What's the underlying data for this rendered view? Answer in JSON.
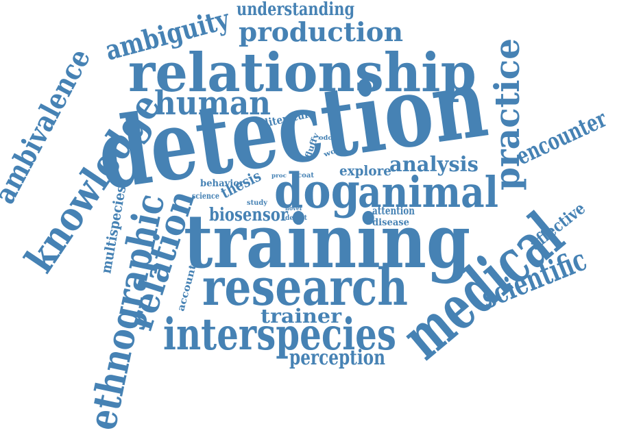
{
  "word_color": "#4682b4",
  "background": "#ffffff",
  "words": [
    {
      "key": "understanding",
      "text": "understanding"
    },
    {
      "key": "production",
      "text": "production"
    },
    {
      "key": "ambiguity",
      "text": "ambiguity"
    },
    {
      "key": "relationship",
      "text": "relationship"
    },
    {
      "key": "practice",
      "text": "practice"
    },
    {
      "key": "human",
      "text": "human"
    },
    {
      "key": "ambivalence",
      "text": "ambivalence"
    },
    {
      "key": "knowledge",
      "text": "knowledge"
    },
    {
      "key": "literature",
      "text": "literature"
    },
    {
      "key": "encounter",
      "text": "encounter"
    },
    {
      "key": "detection",
      "text": "detection"
    },
    {
      "key": "fluffy",
      "text": "fluffy"
    },
    {
      "key": "odor",
      "text": "odor"
    },
    {
      "key": "work",
      "text": "work"
    },
    {
      "key": "explore",
      "text": "explore"
    },
    {
      "key": "analysis",
      "text": "analysis"
    },
    {
      "key": "coat",
      "text": "coat"
    },
    {
      "key": "proc",
      "text": "proc"
    },
    {
      "key": "behavior",
      "text": "behavior"
    },
    {
      "key": "thesis",
      "text": "thesis"
    },
    {
      "key": "science",
      "text": "science"
    },
    {
      "key": "dog",
      "text": "dog"
    },
    {
      "key": "animal",
      "text": "animal"
    },
    {
      "key": "study",
      "text": "study"
    },
    {
      "key": "multispecies",
      "text": "multispecies"
    },
    {
      "key": "biosensor",
      "text": "biosensor"
    },
    {
      "key": "novel",
      "text": "novel"
    },
    {
      "key": "detect",
      "text": "detect"
    },
    {
      "key": "attention",
      "text": "attention"
    },
    {
      "key": "disease",
      "text": "disease"
    },
    {
      "key": "affective",
      "text": "affective"
    },
    {
      "key": "ethnographic",
      "text": "ethnographic"
    },
    {
      "key": "relation",
      "text": "relation"
    },
    {
      "key": "training",
      "text": "training"
    },
    {
      "key": "medical",
      "text": "medical"
    },
    {
      "key": "scientific",
      "text": "scientific"
    },
    {
      "key": "account",
      "text": "account"
    },
    {
      "key": "research",
      "text": "research"
    },
    {
      "key": "trainer",
      "text": "trainer"
    },
    {
      "key": "interspecies",
      "text": "interspecies"
    },
    {
      "key": "perception",
      "text": "perception"
    }
  ]
}
